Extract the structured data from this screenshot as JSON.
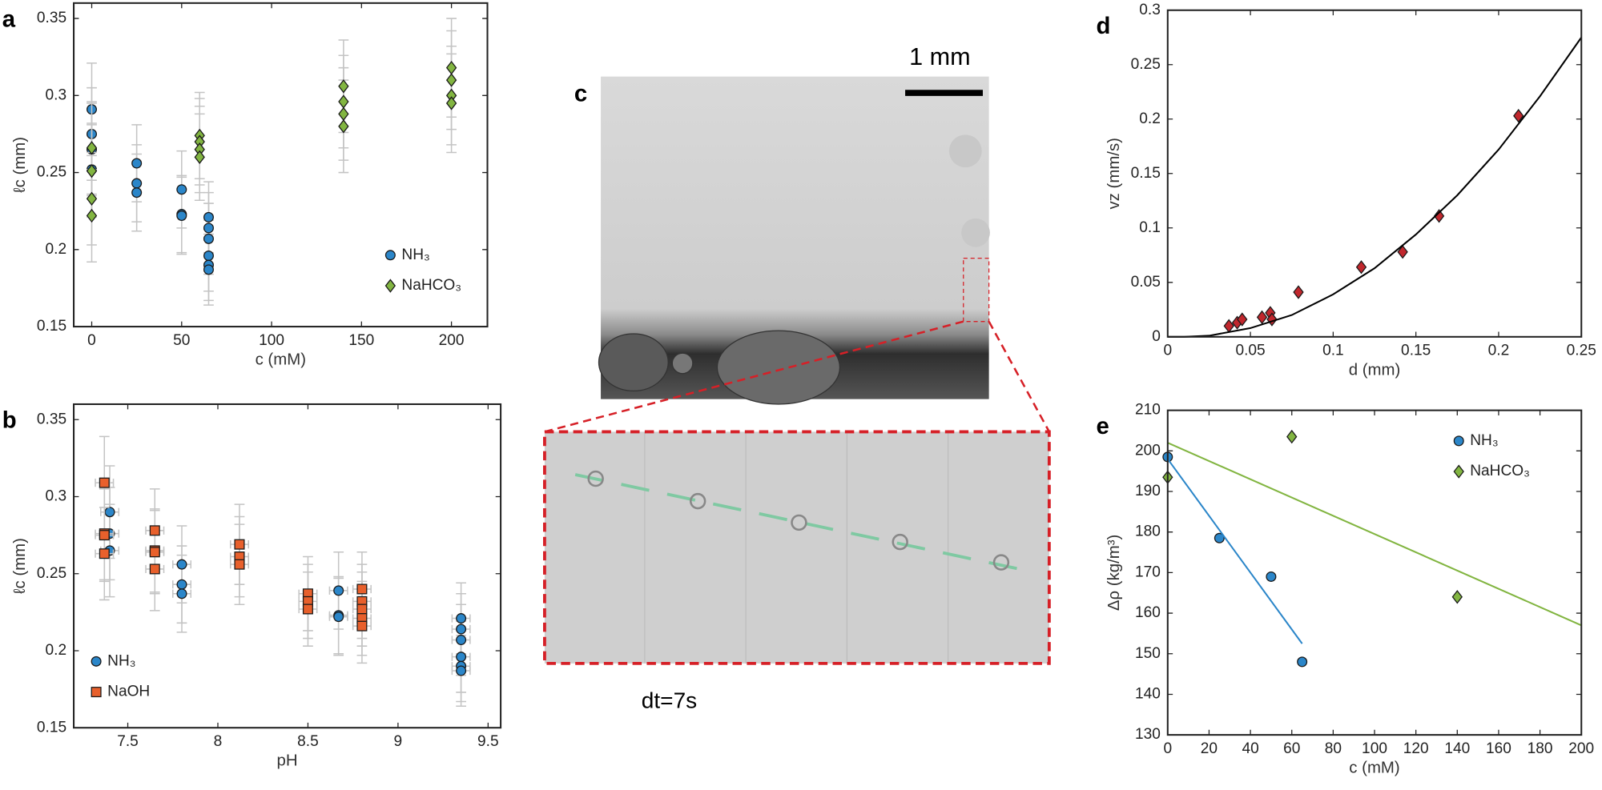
{
  "chart_data": [
    {
      "type": "scatter",
      "panel_label": "a",
      "xlabel": "c (mM)",
      "ylabel": "ℓc (mm)",
      "xlim": [
        -10,
        220
      ],
      "xticks": [
        0,
        50,
        100,
        150,
        200
      ],
      "ylim": [
        0.15,
        0.36
      ],
      "yticks": [
        0.15,
        0.2,
        0.25,
        0.3,
        0.35
      ],
      "legend": "lower right",
      "series": [
        {
          "name": "NH₃",
          "color": "#2b86c9",
          "marker": "circle",
          "x": [
            0,
            0,
            0,
            0,
            25,
            25,
            25,
            50,
            50,
            50,
            65,
            65,
            65,
            65,
            65,
            65
          ],
          "y": [
            0.291,
            0.275,
            0.265,
            0.252,
            0.256,
            0.243,
            0.237,
            0.239,
            0.223,
            0.222,
            0.221,
            0.214,
            0.207,
            0.196,
            0.19,
            0.187
          ],
          "y_errors": [
            0.03,
            0.03,
            0.03,
            0.03,
            0.025,
            0.025,
            0.025,
            0.025,
            0.025,
            0.025,
            0.023,
            0.023,
            0.023,
            0.023,
            0.023,
            0.023
          ]
        },
        {
          "name": "NaHCO₃",
          "color": "#82b541",
          "marker": "diamond",
          "x": [
            0,
            0,
            0,
            0,
            60,
            60,
            60,
            60,
            140,
            140,
            140,
            140,
            200,
            200,
            200,
            200
          ],
          "y": [
            0.266,
            0.251,
            0.233,
            0.222,
            0.274,
            0.27,
            0.265,
            0.26,
            0.306,
            0.296,
            0.288,
            0.28,
            0.318,
            0.31,
            0.3,
            0.295
          ],
          "y_errors": [
            0.03,
            0.03,
            0.03,
            0.03,
            0.028,
            0.028,
            0.028,
            0.028,
            0.03,
            0.03,
            0.03,
            0.03,
            0.032,
            0.032,
            0.032,
            0.032
          ]
        }
      ]
    },
    {
      "type": "scatter",
      "panel_label": "b",
      "xlabel": "pH",
      "ylabel": "ℓc (mm)",
      "xlim": [
        7.2,
        9.57
      ],
      "xticks": [
        7.5,
        8,
        8.5,
        9,
        9.5
      ],
      "ylim": [
        0.15,
        0.36
      ],
      "yticks": [
        0.15,
        0.2,
        0.25,
        0.3,
        0.35
      ],
      "legend": "lower left",
      "series": [
        {
          "name": "NH₃",
          "color": "#2b86c9",
          "marker": "circle",
          "x": [
            7.4,
            7.4,
            7.4,
            7.8,
            7.8,
            7.8,
            8.67,
            8.67,
            8.67,
            9.35,
            9.35,
            9.35,
            9.35,
            9.35,
            9.35
          ],
          "y": [
            0.29,
            0.276,
            0.265,
            0.256,
            0.243,
            0.237,
            0.239,
            0.223,
            0.222,
            0.221,
            0.214,
            0.207,
            0.196,
            0.19,
            0.187
          ],
          "y_errors": [
            0.03,
            0.03,
            0.03,
            0.025,
            0.025,
            0.025,
            0.025,
            0.025,
            0.025,
            0.023,
            0.023,
            0.023,
            0.023,
            0.023,
            0.023
          ],
          "x_errors": [
            0.05,
            0.05,
            0.05,
            0.05,
            0.05,
            0.05,
            0.05,
            0.05,
            0.05,
            0.05,
            0.05,
            0.05,
            0.05,
            0.05,
            0.05
          ]
        },
        {
          "name": "NaOH",
          "color": "#e8602c",
          "marker": "square",
          "x": [
            7.37,
            7.37,
            7.37,
            7.37,
            7.65,
            7.65,
            7.65,
            7.65,
            8.12,
            8.12,
            8.12,
            8.5,
            8.5,
            8.5,
            8.8,
            8.8,
            8.8,
            8.8,
            8.8
          ],
          "y": [
            0.309,
            0.276,
            0.275,
            0.263,
            0.278,
            0.265,
            0.264,
            0.253,
            0.269,
            0.261,
            0.256,
            0.237,
            0.232,
            0.227,
            0.24,
            0.232,
            0.227,
            0.221,
            0.216
          ],
          "y_errors": [
            0.03,
            0.03,
            0.03,
            0.03,
            0.027,
            0.027,
            0.027,
            0.027,
            0.026,
            0.026,
            0.026,
            0.024,
            0.024,
            0.024,
            0.024,
            0.024,
            0.024,
            0.024,
            0.024
          ],
          "x_errors": [
            0.05,
            0.05,
            0.05,
            0.05,
            0.05,
            0.05,
            0.05,
            0.05,
            0.05,
            0.05,
            0.05,
            0.05,
            0.05,
            0.05,
            0.05,
            0.05,
            0.05,
            0.05,
            0.05
          ]
        }
      ]
    },
    {
      "type": "scatter",
      "panel_label": "d",
      "xlabel": "d (mm)",
      "ylabel": "vz (mm/s)",
      "xlim": [
        0,
        0.25
      ],
      "xticks": [
        0,
        0.05,
        0.1,
        0.15,
        0.2,
        0.25
      ],
      "ylim": [
        0,
        0.3
      ],
      "yticks": [
        0,
        0.05,
        0.1,
        0.15,
        0.2,
        0.25,
        0.3
      ],
      "series": [
        {
          "color": "#c1272d",
          "marker": "diamond",
          "x": [
            0.037,
            0.042,
            0.045,
            0.057,
            0.062,
            0.063,
            0.079,
            0.117,
            0.142,
            0.164,
            0.212
          ],
          "y": [
            0.01,
            0.013,
            0.016,
            0.018,
            0.022,
            0.016,
            0.041,
            0.064,
            0.078,
            0.111,
            0.203
          ]
        },
        {
          "color": "#000000",
          "mode": "line",
          "x": [
            0,
            0.01,
            0.025,
            0.05,
            0.075,
            0.1,
            0.125,
            0.15,
            0.175,
            0.2,
            0.225,
            0.25
          ],
          "y": [
            0,
            0,
            0.001,
            0.008,
            0.02,
            0.039,
            0.063,
            0.094,
            0.13,
            0.172,
            0.221,
            0.275
          ]
        }
      ]
    },
    {
      "type": "scatter",
      "panel_label": "e",
      "xlabel": "c (mM)",
      "ylabel": "Δρ (kg/m³)",
      "xlim": [
        0,
        200
      ],
      "xticks": [
        0,
        20,
        40,
        60,
        80,
        100,
        120,
        140,
        160,
        180,
        200
      ],
      "ylim": [
        130,
        210
      ],
      "yticks": [
        130,
        140,
        150,
        160,
        170,
        180,
        190,
        200,
        210
      ],
      "legend": "upper right",
      "series": [
        {
          "name": "NH₃",
          "color": "#2b86c9",
          "marker": "circle",
          "x": [
            0,
            25,
            50,
            65
          ],
          "y": [
            198.5,
            178.5,
            169,
            148
          ]
        },
        {
          "name": "NaHCO₃",
          "color": "#82b541",
          "marker": "diamond",
          "x": [
            0,
            60,
            140
          ],
          "y": [
            193.5,
            203.5,
            164
          ]
        },
        {
          "color": "#2b86c9",
          "mode": "line",
          "x": [
            0,
            65
          ],
          "y": [
            198,
            152.5
          ]
        },
        {
          "color": "#82b541",
          "mode": "line",
          "x": [
            0,
            200
          ],
          "y": [
            202,
            157
          ]
        }
      ]
    }
  ],
  "image_panel": {
    "panel_label": "c",
    "scale_bar": "1 mm",
    "caption": "dt=7s"
  }
}
